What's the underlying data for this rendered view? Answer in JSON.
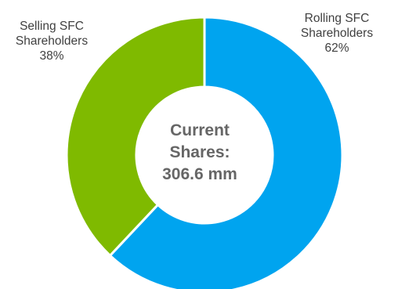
{
  "chart_data": {
    "type": "pie",
    "style": "donut",
    "slices": [
      {
        "label_line1": "Selling SFC",
        "label_line2": "Shareholders",
        "value": 38,
        "value_label": "38%",
        "color": "#7fba00"
      },
      {
        "label_line1": "Rolling SFC",
        "label_line2": "Shareholders",
        "value": 62,
        "value_label": "62%",
        "color": "#00a4ef"
      }
    ],
    "center_text": [
      "Current",
      "Shares:",
      "306.6 mm"
    ],
    "separator_color": "#ffffff"
  }
}
